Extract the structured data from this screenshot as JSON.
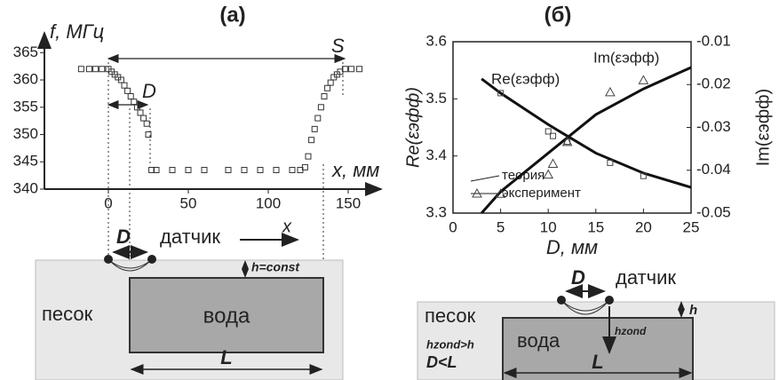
{
  "chart_data": [
    {
      "type": "scatter",
      "title": "(a)",
      "xlabel": "x, мм",
      "ylabel": "f, МГц",
      "x": [
        -17,
        -12,
        -8,
        -4,
        0,
        2,
        4,
        6,
        8,
        10,
        12,
        14,
        16,
        18,
        20,
        22,
        24,
        25,
        27,
        30,
        40,
        50,
        60,
        75,
        85,
        95,
        105,
        115,
        120,
        123,
        125,
        127,
        129,
        131,
        133,
        135,
        137,
        139,
        141,
        143,
        145,
        148,
        152,
        157
      ],
      "values": [
        362,
        362,
        362,
        362,
        362,
        361.5,
        361,
        360.5,
        360,
        359,
        358,
        357,
        356,
        355,
        354,
        353,
        352,
        350,
        343.5,
        343.5,
        343.5,
        343.5,
        343.5,
        343.5,
        343.5,
        343.5,
        343.5,
        343.5,
        343.5,
        344,
        346,
        349,
        351,
        353,
        355,
        357,
        358.5,
        359.5,
        360.5,
        361,
        361.5,
        362,
        362,
        362
      ],
      "color": "#333333",
      "marker": "square",
      "xlim": [
        -40,
        165
      ],
      "xticks": [
        0,
        50,
        100,
        150
      ],
      "ylim": [
        340,
        367
      ],
      "yticks": [
        340,
        345,
        350,
        355,
        360,
        365
      ],
      "annotations": [
        "S",
        "D"
      ]
    },
    {
      "type": "line",
      "title": "(б)",
      "xlabel": "D, мм",
      "ylabel": "Re(εэфф)",
      "y2label": "Im(εэфф)",
      "xlim": [
        0,
        25
      ],
      "xticks": [
        0,
        5,
        10,
        15,
        20,
        25
      ],
      "ylim": [
        3.3,
        3.6
      ],
      "yticks": [
        3.3,
        3.4,
        3.5,
        3.6
      ],
      "y2lim": [
        -0.05,
        -0.01
      ],
      "y2ticks": [
        -0.05,
        -0.04,
        -0.03,
        -0.02,
        -0.01
      ],
      "series": [
        {
          "name": "теория",
          "color": "#111111",
          "style": "line",
          "x": [
            3,
            5,
            10,
            15,
            20,
            25
          ],
          "values": [
            3.535,
            3.51,
            3.455,
            3.405,
            3.37,
            3.345
          ]
        },
        {
          "color": "#444444",
          "style": "markers",
          "marker": "square",
          "x": [
            5,
            10,
            10.5,
            12,
            16.5,
            20
          ],
          "values": [
            3.51,
            3.443,
            3.435,
            3.425,
            3.388,
            3.365
          ]
        },
        {
          "color": "#111111",
          "style": "line",
          "axis": "y2",
          "x": [
            3,
            5,
            10,
            15,
            20,
            25
          ],
          "values": [
            -0.05,
            -0.045,
            -0.036,
            -0.027,
            -0.021,
            -0.016
          ]
        },
        {
          "name": "эксперимент",
          "color": "#444444",
          "style": "markers",
          "marker": "triangle",
          "axis": "y2",
          "x": [
            5,
            10,
            10.5,
            12,
            16.5,
            20
          ],
          "values": [
            -0.0455,
            -0.041,
            -0.0385,
            -0.0334,
            -0.0218,
            -0.019
          ]
        }
      ],
      "annotations": [
        "Re(εэфф)",
        "Im(εэфф)"
      ]
    }
  ],
  "diagrams": [
    {
      "labels": [
        "D",
        "датчик",
        "x",
        "h=const",
        "песок",
        "вода",
        "L"
      ]
    },
    {
      "labels": [
        "D",
        "датчик",
        "песок",
        "вода",
        "h",
        "hzond",
        "hzond>h",
        "D<L",
        "L"
      ]
    }
  ]
}
